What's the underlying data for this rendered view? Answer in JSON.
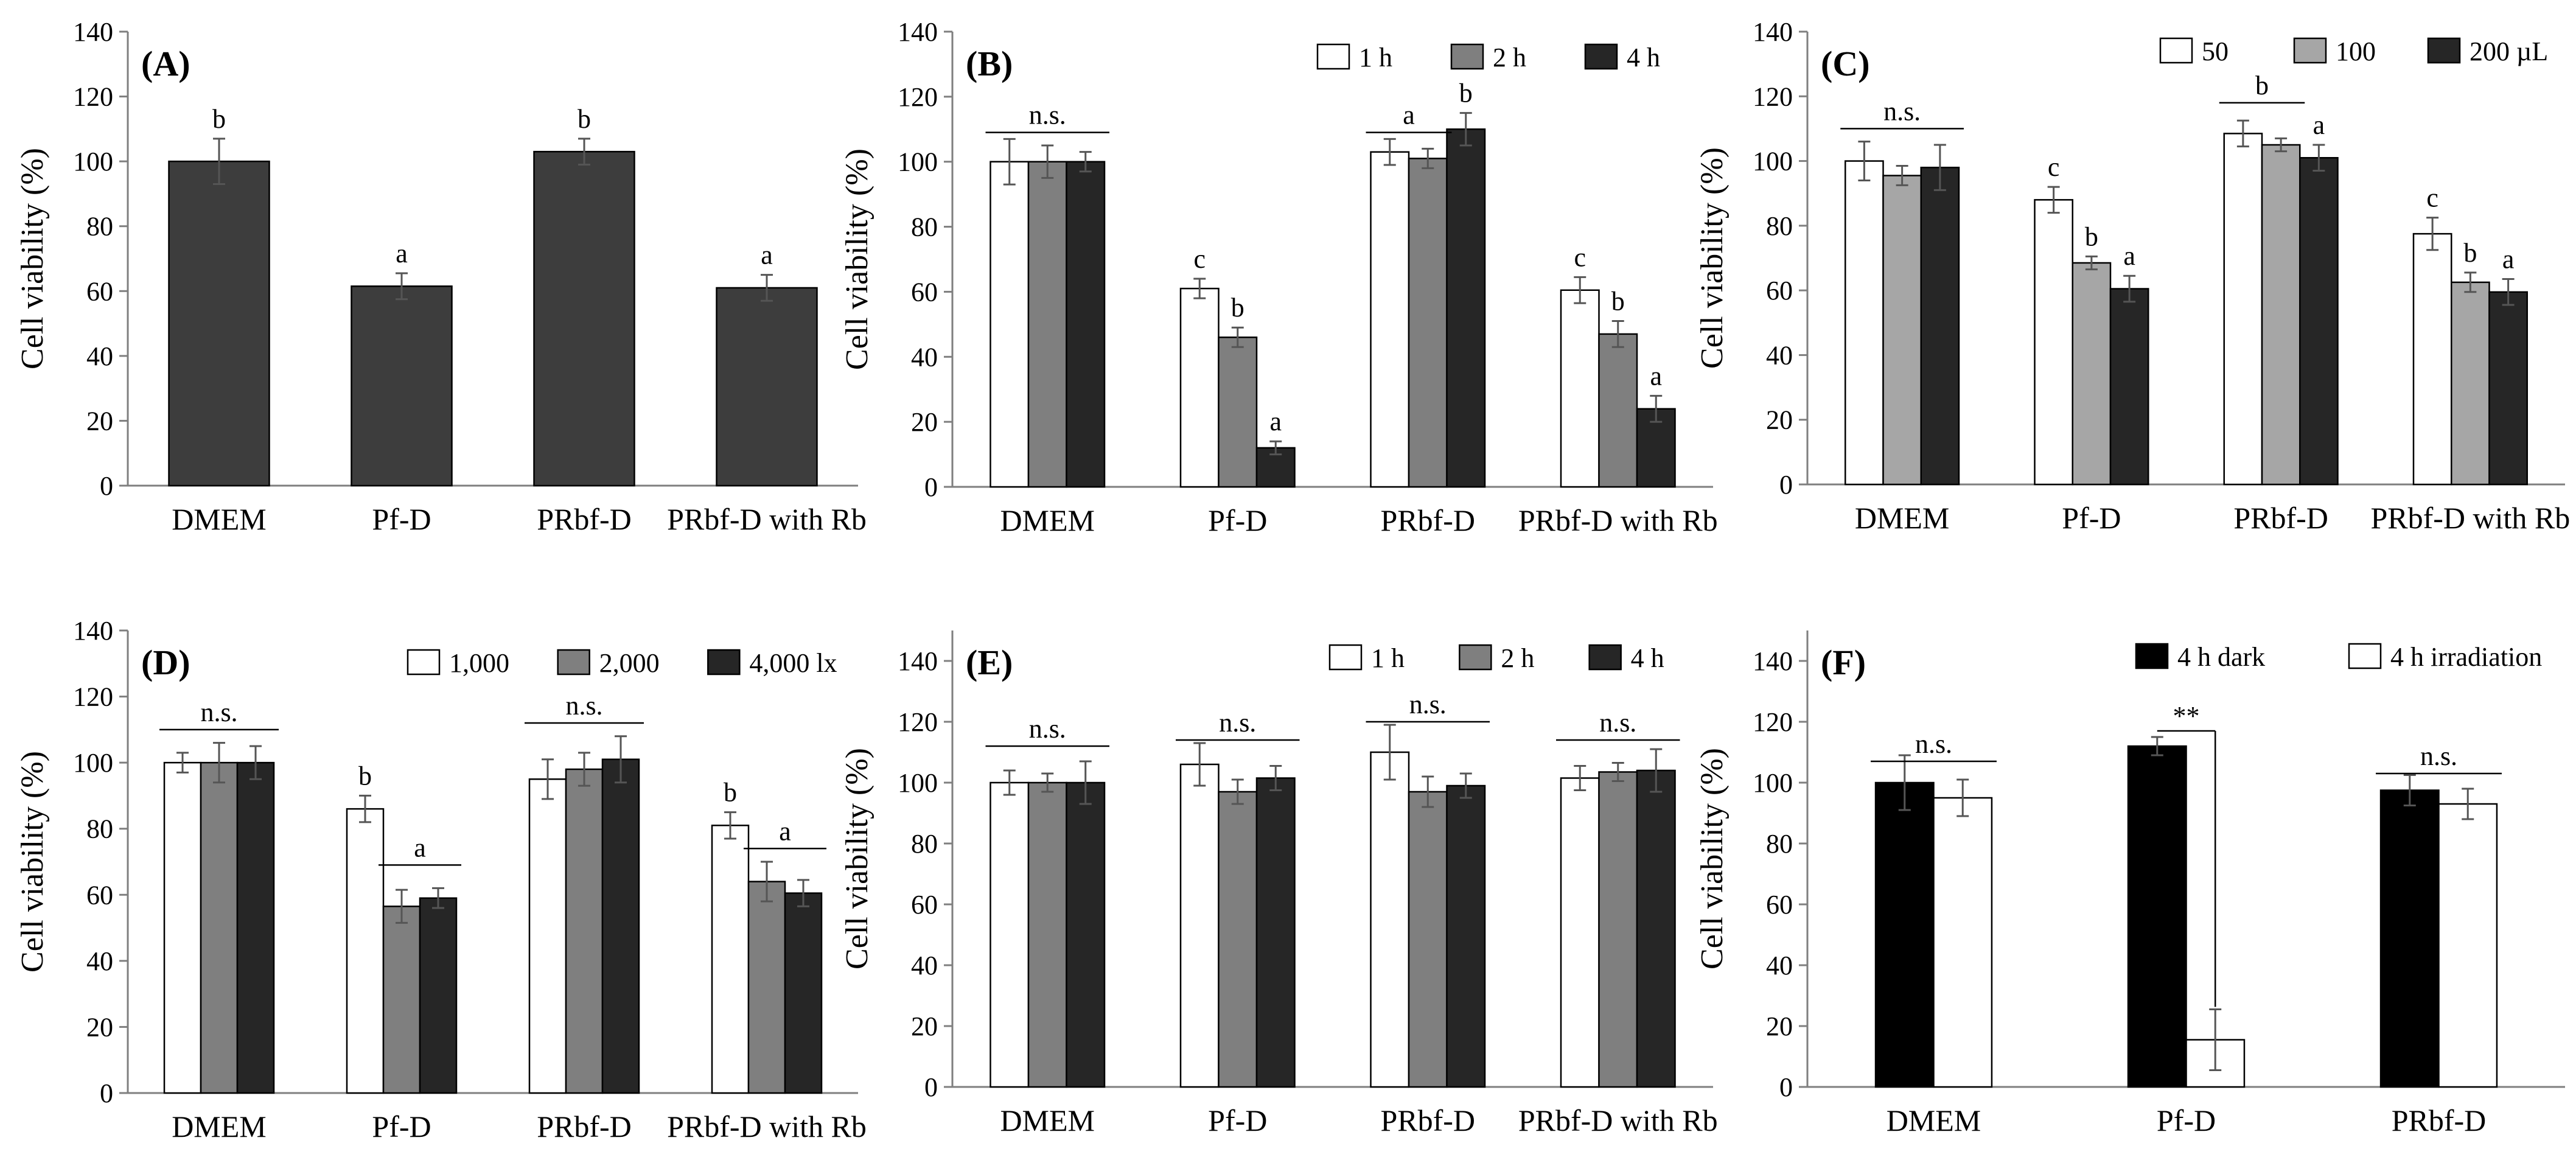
{
  "colors": {
    "dark": "#3d3d3d",
    "black": "#000000",
    "gray": "#7f7f7f",
    "lightgray": "#a6a6a6",
    "nearblack": "#262626",
    "white": "#ffffff",
    "axis": "#7f7f7f"
  },
  "chart_data": [
    {
      "panel": "(A)",
      "type": "bar",
      "ylabel": "Cell viability (%)",
      "ylim": [
        0,
        140
      ],
      "yticks": [
        "0",
        "20",
        "40",
        "60",
        "80",
        "100",
        "120",
        "140"
      ],
      "grid": false,
      "categories": [
        "DMEM",
        "Pf-D",
        "PRbf-D",
        "PRbf-D with Rb"
      ],
      "series": [
        {
          "name": "",
          "color": "dark",
          "values": [
            100,
            61.5,
            103,
            61
          ],
          "errors": [
            7,
            4,
            4,
            4
          ],
          "letters": [
            "b",
            "a",
            "b",
            "a"
          ]
        }
      ],
      "brackets": []
    },
    {
      "panel": "(B)",
      "type": "bar",
      "ylabel": "Cell viability (%)",
      "ylim": [
        0,
        140
      ],
      "yticks": [
        "0",
        "20",
        "40",
        "60",
        "80",
        "100",
        "120",
        "140"
      ],
      "grid": false,
      "legend_position": "top-right",
      "categories": [
        "DMEM",
        "Pf-D",
        "PRbf-D",
        "PRbf-D with Rb"
      ],
      "series": [
        {
          "name": "1 h",
          "color": "white",
          "values": [
            100,
            61,
            103,
            60.5
          ],
          "errors": [
            7,
            3,
            4,
            4
          ],
          "letters": [
            "",
            "c",
            "",
            ""
          ]
        },
        {
          "name": "2 h",
          "color": "gray",
          "values": [
            100,
            46,
            101,
            47
          ],
          "errors": [
            5,
            3,
            3,
            4
          ],
          "letters": [
            "",
            "b",
            "",
            "b"
          ]
        },
        {
          "name": "4 h",
          "color": "nearblack",
          "values": [
            100,
            12,
            110,
            24
          ],
          "errors": [
            3,
            2,
            5,
            4
          ],
          "letters": [
            "",
            "a",
            "b",
            "a"
          ]
        }
      ],
      "letter_c4": "c",
      "brackets": [
        {
          "group": 0,
          "from": 0,
          "to": 2,
          "y": 109,
          "label": "n.s."
        },
        {
          "group": 2,
          "from": 0,
          "to": 1,
          "y": 109,
          "label": "a"
        }
      ]
    },
    {
      "panel": "(C)",
      "type": "bar",
      "ylabel": "Cell viability (%)",
      "ylim": [
        0,
        140
      ],
      "yticks": [
        "0",
        "20",
        "40",
        "60",
        "80",
        "100",
        "120",
        "140"
      ],
      "grid": false,
      "legend_position": "top-right",
      "categories": [
        "DMEM",
        "Pf-D",
        "PRbf-D",
        "PRbf-D with Rb"
      ],
      "series": [
        {
          "name": "50",
          "color": "white",
          "values": [
            100,
            88,
            108.5,
            77.5
          ],
          "errors": [
            6,
            4,
            4,
            5
          ],
          "letters": [
            "",
            "c",
            "",
            "c"
          ]
        },
        {
          "name": "100",
          "color": "lightgray",
          "values": [
            95.5,
            68.5,
            105,
            62.5
          ],
          "errors": [
            3,
            2,
            2,
            3
          ],
          "letters": [
            "",
            "b",
            "",
            "b"
          ]
        },
        {
          "name": "200 µL",
          "color": "nearblack",
          "values": [
            98,
            60.5,
            101,
            59.5
          ],
          "errors": [
            7,
            4,
            4,
            4
          ],
          "letters": [
            "",
            "a",
            "a",
            "a"
          ]
        }
      ],
      "brackets": [
        {
          "group": 0,
          "from": 0,
          "to": 2,
          "y": 110,
          "label": "n.s."
        },
        {
          "group": 2,
          "from": 0,
          "to": 1,
          "y": 118,
          "label": "b"
        }
      ]
    },
    {
      "panel": "(D)",
      "type": "bar",
      "ylabel": "Cell viability (%)",
      "ylim": [
        0,
        140
      ],
      "yticks": [
        "0",
        "20",
        "40",
        "60",
        "80",
        "100",
        "120",
        "140"
      ],
      "grid": false,
      "legend_position": "top-right",
      "categories": [
        "DMEM",
        "Pf-D",
        "PRbf-D",
        "PRbf-D with Rb"
      ],
      "series": [
        {
          "name": "1,000",
          "color": "white",
          "values": [
            100,
            86,
            95,
            81
          ],
          "errors": [
            3,
            4,
            6,
            4
          ],
          "letters": [
            "",
            "b",
            "",
            "b"
          ]
        },
        {
          "name": "2,000",
          "color": "gray",
          "values": [
            100,
            56.5,
            98,
            64
          ],
          "errors": [
            6,
            5,
            5,
            6
          ],
          "letters": [
            "",
            "",
            "",
            ""
          ]
        },
        {
          "name": "4,000 lx",
          "color": "nearblack",
          "values": [
            100,
            59,
            101,
            60.5
          ],
          "errors": [
            5,
            3,
            7,
            4
          ],
          "letters": [
            "",
            "",
            "",
            ""
          ]
        }
      ],
      "brackets": [
        {
          "group": 0,
          "from": 0,
          "to": 2,
          "y": 110,
          "label": "n.s."
        },
        {
          "group": 1,
          "from": 1,
          "to": 2,
          "y": 69,
          "label": "a"
        },
        {
          "group": 2,
          "from": 0,
          "to": 2,
          "y": 112,
          "label": "n.s."
        },
        {
          "group": 3,
          "from": 1,
          "to": 2,
          "y": 74,
          "label": "a"
        }
      ]
    },
    {
      "panel": "(E)",
      "type": "bar",
      "ylabel": "Cell viability (%)",
      "ylim": [
        0,
        150
      ],
      "yticks": [
        "0",
        "20",
        "40",
        "60",
        "80",
        "100",
        "120",
        "140"
      ],
      "grid": false,
      "legend_position": "top-right",
      "categories": [
        "DMEM",
        "Pf-D",
        "PRbf-D",
        "PRbf-D with Rb"
      ],
      "series": [
        {
          "name": "1 h",
          "color": "white",
          "values": [
            100,
            106,
            110,
            101.5
          ],
          "errors": [
            4,
            7,
            9,
            4
          ],
          "letters": [
            "",
            "",
            "",
            ""
          ]
        },
        {
          "name": "2 h",
          "color": "gray",
          "values": [
            100,
            97,
            97,
            103.5
          ],
          "errors": [
            3,
            4,
            5,
            3
          ],
          "letters": [
            "",
            "",
            "",
            ""
          ]
        },
        {
          "name": "4 h",
          "color": "nearblack",
          "values": [
            100,
            101.5,
            99,
            104
          ],
          "errors": [
            7,
            4,
            4,
            7
          ],
          "letters": [
            "",
            "",
            "",
            ""
          ]
        }
      ],
      "brackets": [
        {
          "group": 0,
          "from": 0,
          "to": 2,
          "y": 112,
          "label": "n.s."
        },
        {
          "group": 1,
          "from": 0,
          "to": 2,
          "y": 114,
          "label": "n.s."
        },
        {
          "group": 2,
          "from": 0,
          "to": 2,
          "y": 120,
          "label": "n.s."
        },
        {
          "group": 3,
          "from": 0,
          "to": 2,
          "y": 114,
          "label": "n.s."
        }
      ]
    },
    {
      "panel": "(F)",
      "type": "bar",
      "ylabel": "Cell viability (%)",
      "ylim": [
        0,
        150
      ],
      "yticks": [
        "0",
        "20",
        "40",
        "60",
        "80",
        "100",
        "120",
        "140"
      ],
      "grid": false,
      "legend_position": "top-right",
      "categories": [
        "DMEM",
        "Pf-D",
        "PRbf-D"
      ],
      "series": [
        {
          "name": "4 h dark",
          "color": "black",
          "values": [
            100,
            112,
            97.5
          ],
          "errors": [
            9,
            3,
            5
          ],
          "letters": [
            "",
            "",
            ""
          ]
        },
        {
          "name": "4 h irradiation",
          "color": "white",
          "values": [
            95,
            15.5,
            93
          ],
          "errors": [
            6,
            10,
            5
          ],
          "letters": [
            "",
            "",
            ""
          ]
        }
      ],
      "brackets": [
        {
          "group": 0,
          "from": 0,
          "to": 1,
          "y": 107,
          "label": "n.s."
        },
        {
          "group": 2,
          "from": 0,
          "to": 1,
          "y": 103,
          "label": "n.s."
        }
      ],
      "significance": {
        "group": 1,
        "label": "**",
        "y": 117
      }
    }
  ]
}
